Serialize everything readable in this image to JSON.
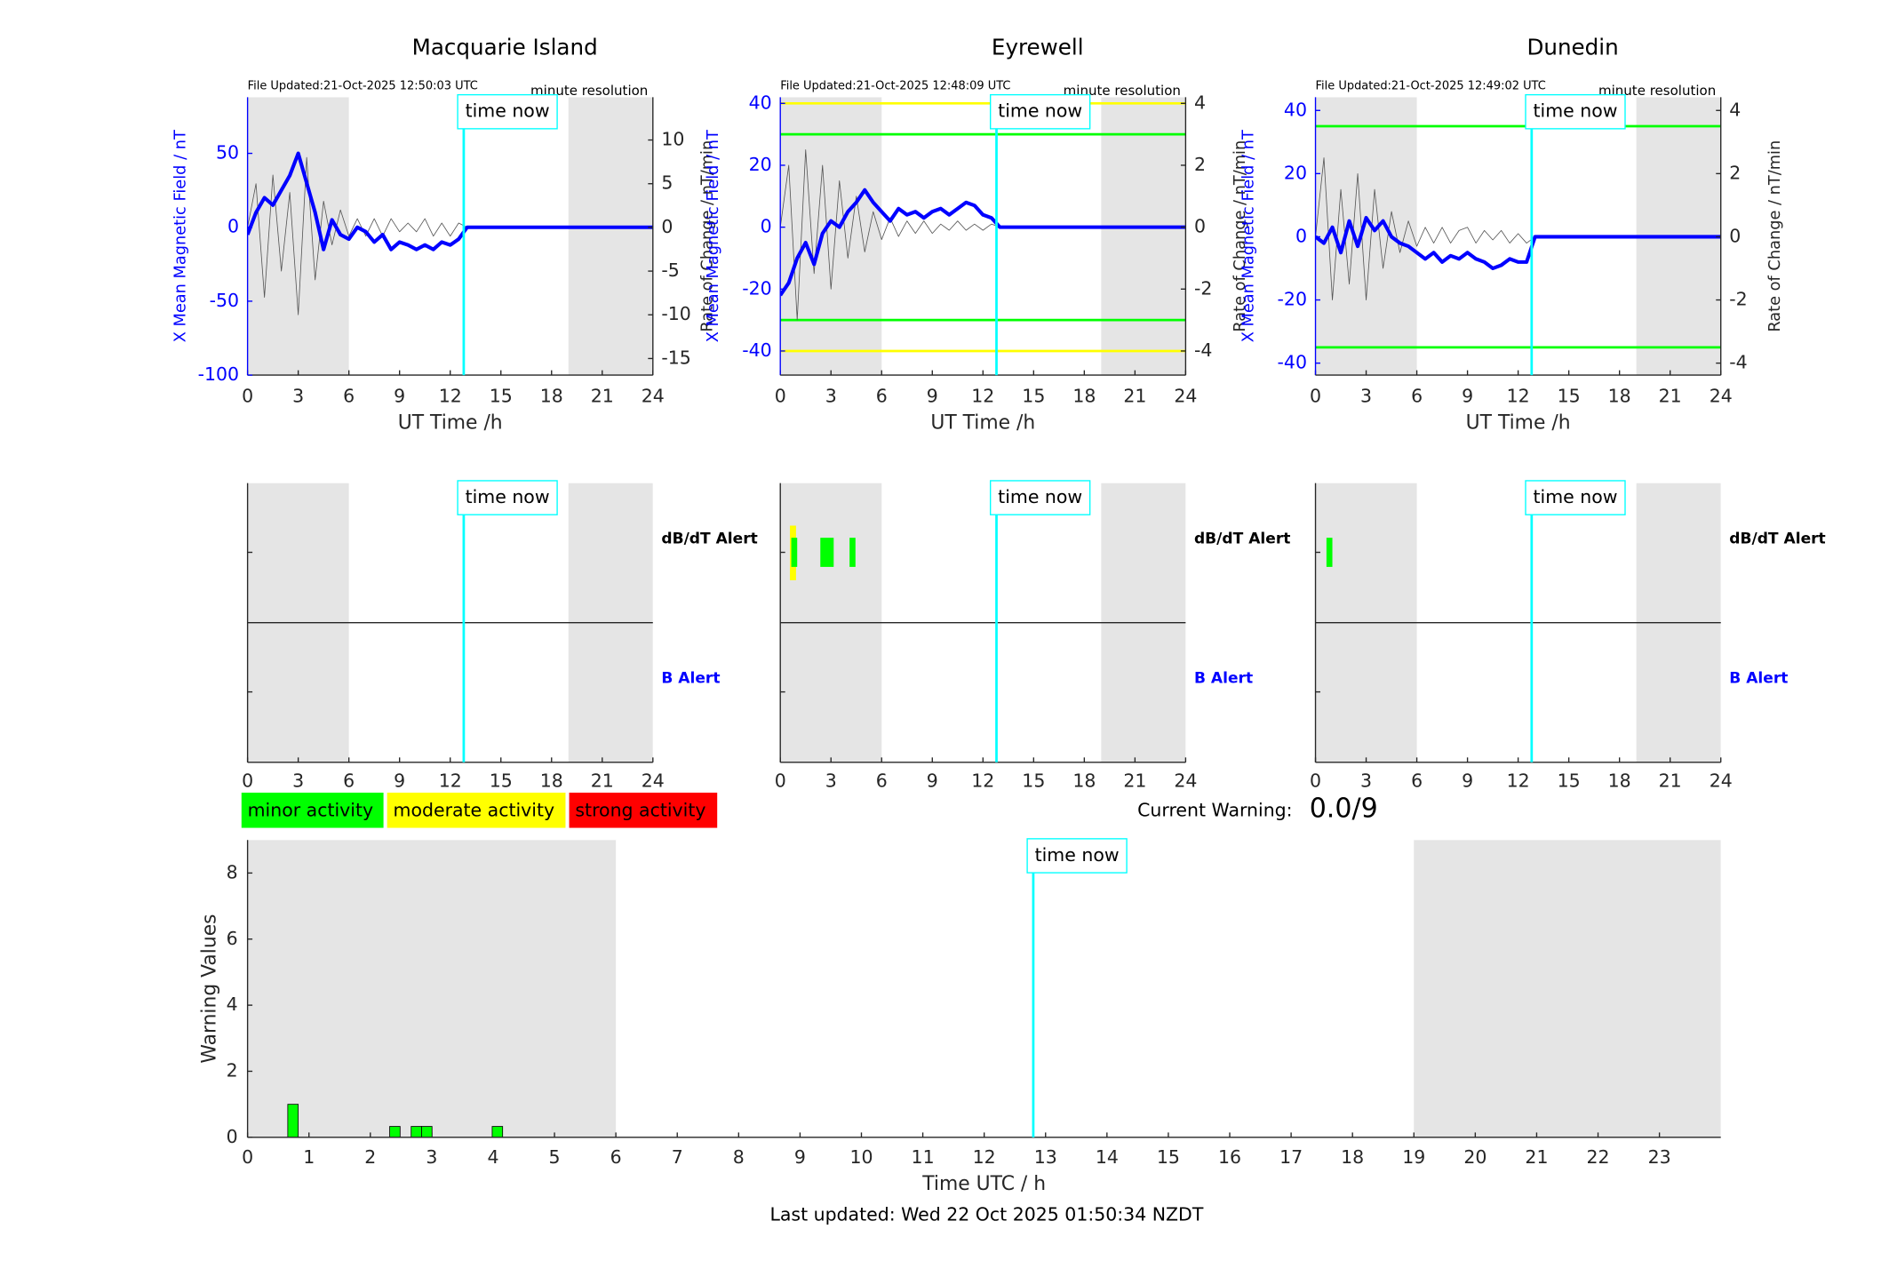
{
  "chart_data": [
    {
      "type": "line",
      "title": "Macquarie Island",
      "file_updated": "File Updated:21-Oct-2025 12:50:03 UTC",
      "resolution": "minute resolution",
      "ylabel": "X Mean Magnetic Field / nT",
      "y2label": "Rate of Change / nT/min",
      "xlabel": "UT Time /h",
      "xlim": [
        0,
        24
      ],
      "xticks": [
        0,
        3,
        6,
        9,
        12,
        15,
        18,
        21,
        24
      ],
      "ylim": [
        -100,
        88
      ],
      "yticks": [
        -100,
        -50,
        0,
        50
      ],
      "y2lim": [
        -16.9,
        14.9
      ],
      "y2ticks": [
        -15,
        -10,
        -5,
        0,
        5,
        10
      ],
      "shaded": [
        [
          0,
          6
        ],
        [
          19,
          24
        ]
      ],
      "time_now": 12.8,
      "time_now_label": "time now",
      "x": [
        0,
        0.5,
        1,
        1.5,
        2,
        2.5,
        3,
        3.5,
        4,
        4.5,
        5,
        5.5,
        6,
        6.5,
        7,
        7.5,
        8,
        8.5,
        9,
        9.5,
        10,
        10.5,
        11,
        11.5,
        12,
        12.5,
        13,
        24
      ],
      "series": [
        {
          "color": "#555555",
          "axis": "y2",
          "values": [
            0,
            5,
            -8,
            6,
            -5,
            4,
            -10,
            8,
            -6,
            3,
            -2,
            2,
            -1,
            1,
            -1,
            1,
            -1,
            1,
            -0.5,
            0.5,
            -0.5,
            1,
            -1,
            0.5,
            -1,
            0.5,
            0,
            null
          ]
        },
        {
          "color": "#0000ff",
          "values": [
            -5,
            10,
            20,
            15,
            25,
            35,
            50,
            30,
            10,
            -15,
            5,
            -5,
            -8,
            0,
            -3,
            -10,
            -5,
            -15,
            -10,
            -12,
            -15,
            -12,
            -15,
            -10,
            -12,
            -8,
            0,
            0
          ]
        }
      ]
    },
    {
      "type": "line",
      "title": "Eyrewell",
      "file_updated": "File Updated:21-Oct-2025 12:48:09 UTC",
      "resolution": "minute resolution",
      "ylabel": "X Mean Magnetic Field / nT",
      "y2label": "Rate of Change / nT/min",
      "xlabel": "UT Time /h",
      "xlim": [
        0,
        24
      ],
      "xticks": [
        0,
        3,
        6,
        9,
        12,
        15,
        18,
        21,
        24
      ],
      "ylim": [
        -47.8,
        42
      ],
      "yticks": [
        -40,
        -20,
        0,
        20,
        40
      ],
      "y2lim": [
        -4.78,
        4.2
      ],
      "y2ticks": [
        -4,
        -2,
        0,
        2,
        4
      ],
      "thresholds": [
        {
          "value": 40,
          "color": "#ffff00"
        },
        {
          "value": -40,
          "color": "#ffff00"
        },
        {
          "value": 30,
          "color": "#00ff00"
        },
        {
          "value": -30,
          "color": "#00ff00"
        }
      ],
      "shaded": [
        [
          0,
          6
        ],
        [
          19,
          24
        ]
      ],
      "time_now": 12.8,
      "time_now_label": "time now",
      "x": [
        0,
        0.5,
        1,
        1.5,
        2,
        2.5,
        3,
        3.5,
        4,
        4.5,
        5,
        5.5,
        6,
        6.5,
        7,
        7.5,
        8,
        8.5,
        9,
        9.5,
        10,
        10.5,
        11,
        11.5,
        12,
        12.5,
        13,
        24
      ],
      "series": [
        {
          "color": "#555555",
          "axis": "y2",
          "values": [
            0,
            2,
            -3,
            2.5,
            -1.5,
            2,
            -2,
            1.5,
            -1,
            1,
            -0.8,
            0.5,
            -0.4,
            0.3,
            -0.3,
            0.2,
            -0.2,
            0.2,
            -0.2,
            0.1,
            -0.1,
            0.2,
            -0.1,
            0.1,
            -0.1,
            0.1,
            0,
            null
          ]
        },
        {
          "color": "#0000ff",
          "values": [
            -22,
            -18,
            -10,
            -5,
            -12,
            -2,
            2,
            0,
            5,
            8,
            12,
            8,
            5,
            2,
            6,
            4,
            5,
            3,
            5,
            6,
            4,
            6,
            8,
            7,
            4,
            3,
            0,
            0
          ]
        }
      ]
    },
    {
      "type": "line",
      "title": "Dunedin",
      "file_updated": "File Updated:21-Oct-2025 12:49:02 UTC",
      "resolution": "minute resolution",
      "ylabel": "X Mean Magnetic Field / nT",
      "y2label": "Rate of Change / nT/min",
      "xlabel": "UT Time /h",
      "xlim": [
        0,
        24
      ],
      "xticks": [
        0,
        3,
        6,
        9,
        12,
        15,
        18,
        21,
        24
      ],
      "ylim": [
        -43.8,
        44.2
      ],
      "yticks": [
        -40,
        -20,
        0,
        20,
        40
      ],
      "y2lim": [
        -4.38,
        4.42
      ],
      "y2ticks": [
        -4,
        -2,
        0,
        2,
        4
      ],
      "thresholds": [
        {
          "value": 35,
          "color": "#00ff00"
        },
        {
          "value": -35,
          "color": "#00ff00"
        }
      ],
      "shaded": [
        [
          0,
          6
        ],
        [
          19,
          24
        ]
      ],
      "time_now": 12.8,
      "time_now_label": "time now",
      "x": [
        0,
        0.5,
        1,
        1.5,
        2,
        2.5,
        3,
        3.5,
        4,
        4.5,
        5,
        5.5,
        6,
        6.5,
        7,
        7.5,
        8,
        8.5,
        9,
        9.5,
        10,
        10.5,
        11,
        11.5,
        12,
        12.5,
        13,
        24
      ],
      "series": [
        {
          "color": "#555555",
          "axis": "y2",
          "values": [
            0,
            2.5,
            -2,
            1.5,
            -1.5,
            2,
            -2,
            1.5,
            -1,
            0.8,
            -0.5,
            0.5,
            -0.3,
            0.3,
            -0.2,
            0.3,
            -0.2,
            0.2,
            0.3,
            -0.2,
            0.2,
            -0.1,
            0.2,
            -0.2,
            0.1,
            -0.2,
            0,
            null
          ]
        },
        {
          "color": "#0000ff",
          "values": [
            0,
            -2,
            3,
            -5,
            5,
            -3,
            6,
            2,
            5,
            0,
            -2,
            -3,
            -5,
            -7,
            -5,
            -8,
            -6,
            -7,
            -5,
            -7,
            -8,
            -10,
            -9,
            -7,
            -8,
            -8,
            0,
            0
          ]
        }
      ]
    },
    {
      "type": "alert",
      "labels": [
        "dB/dT Alert",
        "B Alert"
      ],
      "xlim": [
        0,
        24
      ],
      "xticks": [
        0,
        3,
        6,
        9,
        12,
        15,
        18,
        21,
        24
      ],
      "shaded": [
        [
          0,
          6
        ],
        [
          19,
          24
        ]
      ],
      "time_now": 12.8,
      "time_now_label": "time now",
      "alerts": []
    },
    {
      "type": "alert",
      "labels": [
        "dB/dT Alert",
        "B Alert"
      ],
      "xlim": [
        0,
        24
      ],
      "xticks": [
        0,
        3,
        6,
        9,
        12,
        15,
        18,
        21,
        24
      ],
      "shaded": [
        [
          0,
          6
        ],
        [
          19,
          24
        ]
      ],
      "time_now": 12.8,
      "time_now_label": "time now",
      "alerts": [
        {
          "start": 0.57,
          "end": 0.93,
          "level": "moderate",
          "color": "#ffff00"
        },
        {
          "start": 0.65,
          "end": 1.0,
          "level": "minor",
          "color": "#00ff00"
        },
        {
          "start": 2.37,
          "end": 3.16,
          "level": "minor",
          "color": "#00ff00"
        },
        {
          "start": 4.1,
          "end": 4.45,
          "level": "minor",
          "color": "#00ff00"
        }
      ]
    },
    {
      "type": "alert",
      "labels": [
        "dB/dT Alert",
        "B Alert"
      ],
      "xlim": [
        0,
        24
      ],
      "xticks": [
        0,
        3,
        6,
        9,
        12,
        15,
        18,
        21,
        24
      ],
      "shaded": [
        [
          0,
          6
        ],
        [
          19,
          24
        ]
      ],
      "time_now": 12.8,
      "time_now_label": "time now",
      "alerts": [
        {
          "start": 0.65,
          "end": 1.0,
          "level": "minor",
          "color": "#00ff00"
        }
      ]
    },
    {
      "type": "bar",
      "ylabel": "Warning Values",
      "xlabel": "Time UTC / h",
      "footer": "Last updated: Wed 22 Oct 2025 01:50:34 NZDT",
      "activity_levels": [
        {
          "label": "minor activity",
          "color": "#00ff00"
        },
        {
          "label": "moderate activity",
          "color": "#ffff00"
        },
        {
          "label": "strong activity",
          "color": "#ff0000"
        }
      ],
      "current_warning_label": "Current Warning:",
      "current_warning": "0.0/9",
      "xlim": [
        0,
        24
      ],
      "xticks": [
        0,
        1,
        2,
        3,
        4,
        5,
        6,
        7,
        8,
        9,
        10,
        11,
        12,
        13,
        14,
        15,
        16,
        17,
        18,
        19,
        20,
        21,
        22,
        23
      ],
      "ylim": [
        0,
        9
      ],
      "yticks": [
        0,
        2,
        4,
        6,
        8
      ],
      "shaded": [
        [
          0,
          6
        ],
        [
          19,
          24
        ]
      ],
      "time_now": 12.8,
      "time_now_label": "time now",
      "x": [
        0.74,
        2.4,
        2.75,
        2.92,
        4.07
      ],
      "values": [
        1,
        0.33,
        0.33,
        0.33,
        0.33
      ],
      "color": "#00ff00"
    }
  ]
}
